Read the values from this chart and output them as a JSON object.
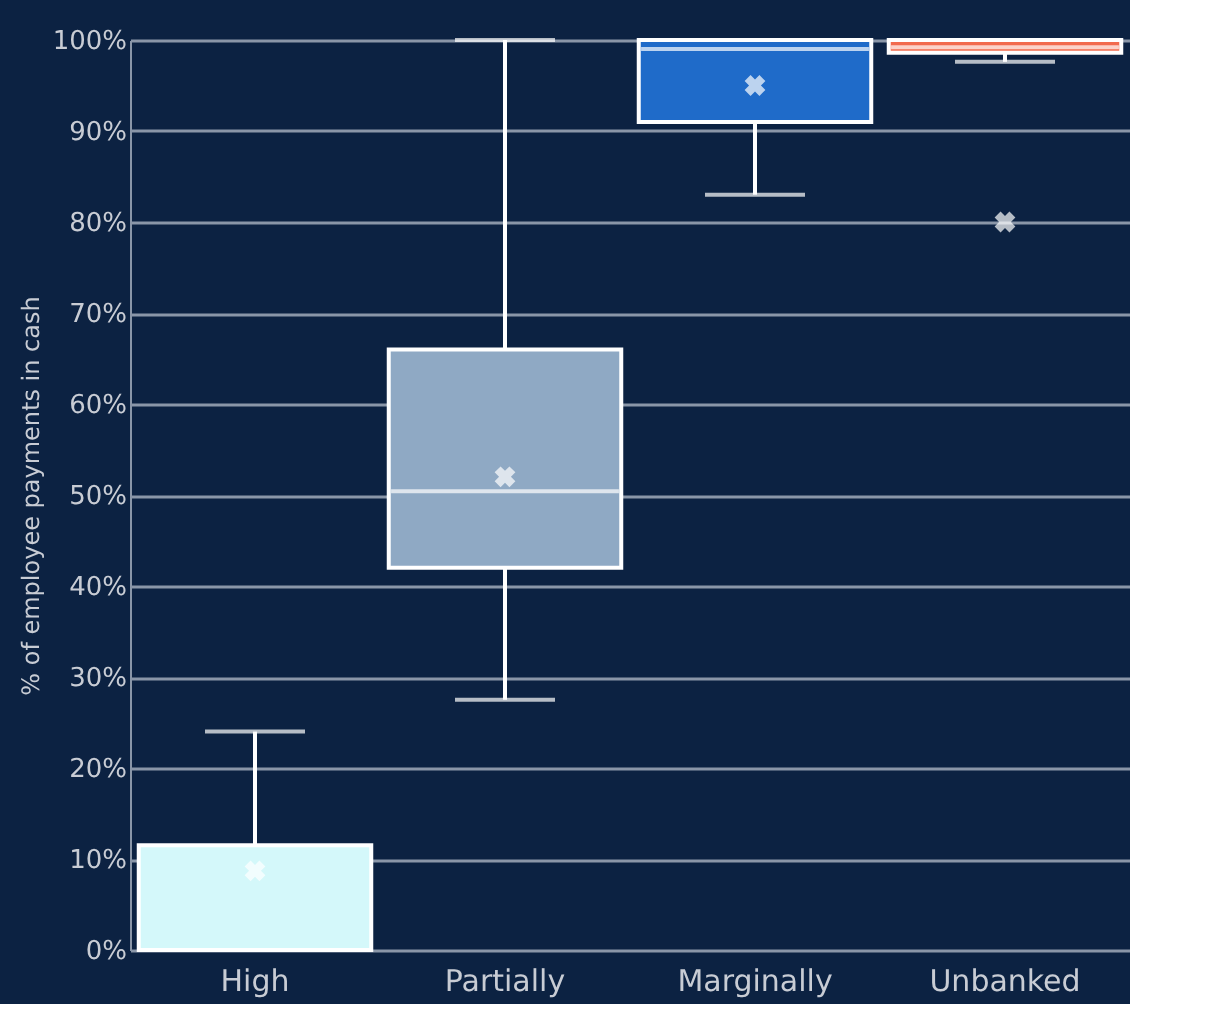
{
  "chart_data": {
    "type": "box",
    "ylabel": "% of employee payments in cash",
    "categories": [
      "High",
      "Partially",
      "Marginally",
      "Unbanked"
    ],
    "colors": [
      "#d4f8fa",
      "#8fa9c4",
      "#1f6bc9",
      "#f26b4e"
    ],
    "boxes": [
      {
        "low": 0,
        "q1": 0,
        "median": 0,
        "q3": 11.5,
        "high": 24,
        "mean": 8.7
      },
      {
        "low": 27.5,
        "q1": 42,
        "median": 50.4,
        "q3": 66,
        "high": 100,
        "mean": 52
      },
      {
        "low": 83,
        "q1": 91,
        "median": 99,
        "q3": 100,
        "high": 100,
        "mean": 95
      },
      {
        "low": 97.6,
        "q1": 98.6,
        "median": 99.2,
        "q3": 100,
        "high": 100,
        "mean": 80
      }
    ],
    "ylim": [
      0,
      100
    ],
    "yticks": [
      {
        "value": 0,
        "label": "0%"
      },
      {
        "value": 10,
        "label": "10%"
      },
      {
        "value": 20,
        "label": "20%"
      },
      {
        "value": 30,
        "label": "30%"
      },
      {
        "value": 40,
        "label": "40%"
      },
      {
        "value": 50,
        "label": "50%"
      },
      {
        "value": 60,
        "label": "60%"
      },
      {
        "value": 70,
        "label": "70%"
      },
      {
        "value": 80,
        "label": "80%"
      },
      {
        "value": 90,
        "label": "90%"
      },
      {
        "value": 100,
        "label": "100%"
      }
    ],
    "grid": "y",
    "marker": "cross"
  }
}
